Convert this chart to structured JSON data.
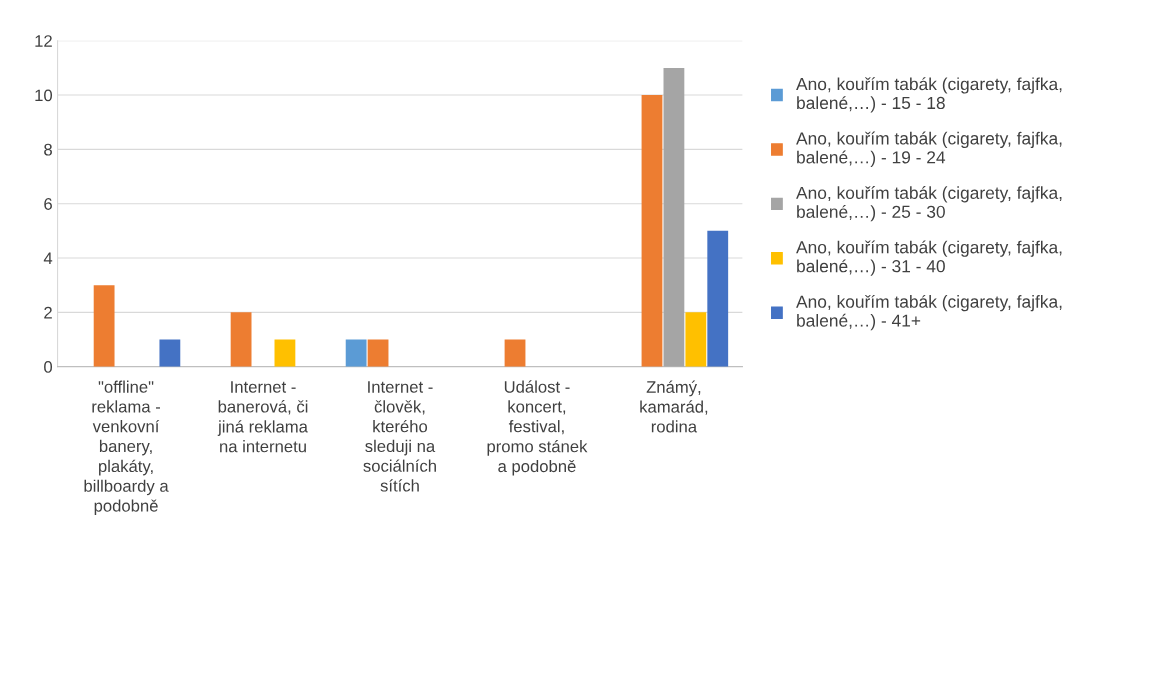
{
  "chart_data": {
    "type": "bar",
    "categories": [
      "\"offline\"\nreklama -\nvenkovní\nbanery,\nplakáty,\nbillboardy a\npodobně",
      "Internet -\nbanerová, či\njiná reklama\nna internetu",
      "Internet -\nčlověk,\nkterého\nsleduji na\nsociálních\nsítích",
      "Událost -\nkoncert,\nfestival,\npromo stánek\na podobně",
      "Známý,\nkamarád,\nrodina"
    ],
    "series": [
      {
        "name": "Ano, kouřím tabák (cigarety, fajfka,\nbalené,…) - 15 - 18",
        "color": "#5b9bd5",
        "values": [
          0,
          0,
          1,
          0,
          0
        ]
      },
      {
        "name": "Ano, kouřím tabák (cigarety, fajfka,\nbalené,…) - 19 - 24",
        "color": "#ed7d31",
        "values": [
          3,
          2,
          1,
          1,
          10
        ]
      },
      {
        "name": "Ano, kouřím tabák (cigarety, fajfka,\nbalené,…) - 25 - 30",
        "color": "#a5a5a5",
        "values": [
          0,
          0,
          0,
          0,
          11
        ]
      },
      {
        "name": "Ano, kouřím tabák (cigarety, fajfka,\nbalené,…) - 31 - 40",
        "color": "#ffc000",
        "values": [
          0,
          1,
          0,
          0,
          2
        ]
      },
      {
        "name": "Ano, kouřím tabák (cigarety, fajfka,\nbalené,…) - 41+",
        "color": "#4472c4",
        "values": [
          1,
          0,
          0,
          0,
          5
        ]
      }
    ],
    "ylim": [
      0,
      12
    ],
    "yticks": [
      0,
      2,
      4,
      6,
      8,
      10,
      12
    ],
    "grid": "y",
    "legend": "right"
  }
}
